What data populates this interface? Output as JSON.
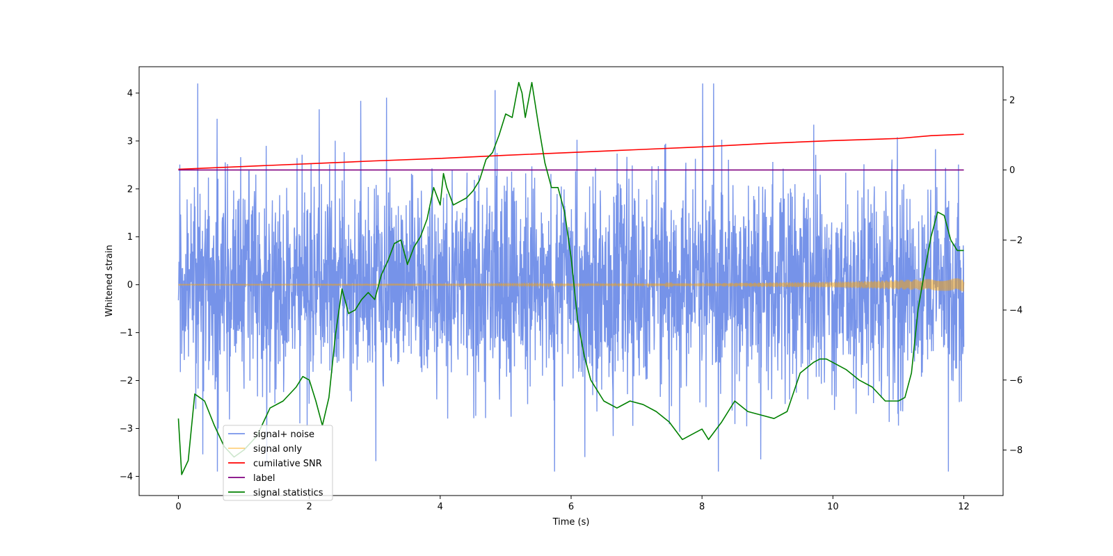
{
  "chart_data": {
    "type": "line",
    "title": "",
    "xlabel": "Time (s)",
    "ylabel": "Whitened strain",
    "y2label": "",
    "xlim": [
      -0.6,
      12.6
    ],
    "ylim": [
      -4.4,
      4.55
    ],
    "y2lim": [
      -9.3,
      2.95
    ],
    "xticks": [
      0,
      2,
      4,
      6,
      8,
      10,
      12
    ],
    "yticks": [
      -4,
      -3,
      -2,
      -1,
      0,
      1,
      2,
      3,
      4
    ],
    "y2ticks": [
      -8,
      -6,
      -4,
      -2,
      0,
      2
    ],
    "legend": {
      "placement": "lower-left"
    },
    "series": [
      {
        "name": "signal+ noise",
        "axis": "left",
        "color": "#4169e1",
        "kind": "noise",
        "x_range": [
          0,
          12
        ],
        "typical_band": [
          -1.7,
          1.7
        ],
        "peak_band": [
          -3.9,
          4.2
        ]
      },
      {
        "name": "signal only",
        "axis": "left",
        "color": "#ffa500",
        "kind": "chirp",
        "x_range": [
          0,
          12
        ],
        "amplitude": {
          "x": [
            0,
            4,
            8,
            10,
            12
          ],
          "y": [
            0.01,
            0.012,
            0.03,
            0.06,
            0.14
          ]
        }
      },
      {
        "name": "cumilative SNR",
        "axis": "right",
        "color": "#ff0000",
        "x": [
          0,
          1,
          2,
          3,
          4,
          5,
          6,
          7,
          8,
          9,
          10,
          11,
          11.5,
          12
        ],
        "y": [
          0.02,
          0.1,
          0.18,
          0.26,
          0.33,
          0.42,
          0.5,
          0.58,
          0.66,
          0.76,
          0.84,
          0.9,
          0.98,
          1.02
        ]
      },
      {
        "name": "label",
        "axis": "right",
        "color": "#800080",
        "x": [
          0,
          12
        ],
        "y": [
          0,
          0
        ]
      },
      {
        "name": "signal statistics",
        "axis": "right",
        "color": "#008000",
        "x": [
          0,
          0.05,
          0.15,
          0.25,
          0.4,
          0.55,
          0.7,
          0.85,
          1.0,
          1.2,
          1.4,
          1.6,
          1.8,
          1.9,
          2.0,
          2.1,
          2.2,
          2.3,
          2.4,
          2.5,
          2.6,
          2.7,
          2.8,
          2.9,
          3.0,
          3.1,
          3.2,
          3.3,
          3.4,
          3.5,
          3.6,
          3.7,
          3.8,
          3.9,
          4.0,
          4.05,
          4.1,
          4.2,
          4.3,
          4.4,
          4.5,
          4.6,
          4.7,
          4.8,
          4.9,
          5.0,
          5.1,
          5.2,
          5.25,
          5.3,
          5.4,
          5.45,
          5.5,
          5.6,
          5.7,
          5.8,
          5.9,
          6.0,
          6.1,
          6.2,
          6.3,
          6.5,
          6.7,
          6.9,
          7.1,
          7.3,
          7.5,
          7.7,
          7.9,
          8.0,
          8.1,
          8.3,
          8.5,
          8.7,
          8.9,
          9.1,
          9.3,
          9.5,
          9.7,
          9.8,
          9.9,
          10.0,
          10.2,
          10.4,
          10.6,
          10.8,
          11.0,
          11.1,
          11.2,
          11.3,
          11.4,
          11.5,
          11.6,
          11.7,
          11.8,
          11.9,
          12.0
        ],
        "y": [
          -7.1,
          -8.7,
          -8.3,
          -6.4,
          -6.6,
          -7.3,
          -7.9,
          -8.2,
          -8.0,
          -7.6,
          -6.8,
          -6.6,
          -6.2,
          -5.9,
          -6.0,
          -6.6,
          -7.3,
          -6.5,
          -4.7,
          -3.4,
          -4.1,
          -4.0,
          -3.7,
          -3.5,
          -3.7,
          -3.0,
          -2.6,
          -2.1,
          -2.0,
          -2.7,
          -2.2,
          -1.9,
          -1.4,
          -0.5,
          -1.0,
          -0.1,
          -0.5,
          -1.0,
          -0.9,
          -0.8,
          -0.6,
          -0.3,
          0.3,
          0.5,
          1.0,
          1.6,
          1.5,
          2.5,
          2.2,
          1.5,
          2.5,
          1.9,
          1.3,
          0.2,
          -0.5,
          -0.5,
          -1.2,
          -2.5,
          -4.3,
          -5.3,
          -6.0,
          -6.6,
          -6.8,
          -6.6,
          -6.7,
          -6.9,
          -7.2,
          -7.7,
          -7.5,
          -7.4,
          -7.7,
          -7.2,
          -6.6,
          -6.9,
          -7.0,
          -7.1,
          -6.9,
          -5.8,
          -5.5,
          -5.4,
          -5.4,
          -5.5,
          -5.7,
          -6.0,
          -6.2,
          -6.6,
          -6.6,
          -6.5,
          -5.8,
          -4.0,
          -2.9,
          -1.9,
          -1.2,
          -1.3,
          -2.0,
          -2.3,
          -2.3
        ]
      }
    ]
  }
}
